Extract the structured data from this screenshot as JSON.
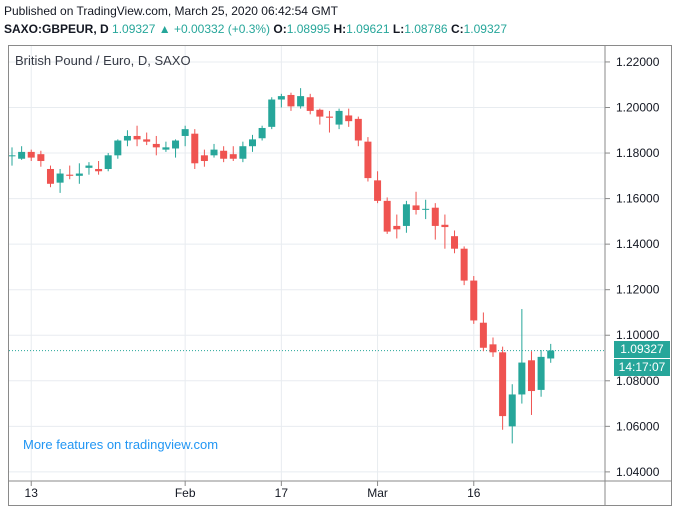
{
  "header": {
    "published": "Published on TradingView.com, March 25, 2020 06:42:54 GMT",
    "symbol": "SAXO:GBPEUR, D",
    "last": "1.09327",
    "change": "▲ +0.00332 (+0.3%)",
    "o_label": "O:",
    "o_value": "1.08995",
    "h_label": "H:",
    "h_value": "1.09621",
    "l_label": "L:",
    "l_value": "1.08786",
    "c_label": "C:",
    "c_value": "1.09327"
  },
  "promo": "More features on tradingview.com",
  "price_tag": {
    "price": "1.09327",
    "countdown": "14:17:07"
  },
  "colors": {
    "up": "#26a69a",
    "down": "#ef5350",
    "grid": "#e8ecf0",
    "last_line": "#26a69a"
  },
  "chart_data": {
    "type": "candlestick",
    "title": "British Pound / Euro, D, SAXO",
    "y_ticks": [
      "1.22000",
      "1.20000",
      "1.18000",
      "1.16000",
      "1.14000",
      "1.12000",
      "1.10000",
      "1.08000",
      "1.06000",
      "1.04000"
    ],
    "x_ticks": [
      "13",
      "Feb",
      "17",
      "Mar",
      "16"
    ],
    "ylim": [
      1.036,
      1.227
    ],
    "last_price": 1.09327,
    "grid": true,
    "candles": [
      {
        "o": 1.179,
        "h": 1.1825,
        "l": 1.1745,
        "c": 1.179
      },
      {
        "o": 1.1775,
        "h": 1.183,
        "l": 1.177,
        "c": 1.1805
      },
      {
        "o": 1.1805,
        "h": 1.1815,
        "l": 1.1765,
        "c": 1.178
      },
      {
        "o": 1.1795,
        "h": 1.181,
        "l": 1.174,
        "c": 1.1765
      },
      {
        "o": 1.173,
        "h": 1.1745,
        "l": 1.165,
        "c": 1.1665
      },
      {
        "o": 1.167,
        "h": 1.173,
        "l": 1.1625,
        "c": 1.171
      },
      {
        "o": 1.1705,
        "h": 1.1745,
        "l": 1.1685,
        "c": 1.17
      },
      {
        "o": 1.17,
        "h": 1.1755,
        "l": 1.1665,
        "c": 1.171
      },
      {
        "o": 1.1735,
        "h": 1.176,
        "l": 1.1705,
        "c": 1.1745
      },
      {
        "o": 1.173,
        "h": 1.1765,
        "l": 1.1705,
        "c": 1.172
      },
      {
        "o": 1.173,
        "h": 1.18,
        "l": 1.172,
        "c": 1.179
      },
      {
        "o": 1.179,
        "h": 1.186,
        "l": 1.1775,
        "c": 1.1855
      },
      {
        "o": 1.1855,
        "h": 1.19,
        "l": 1.183,
        "c": 1.1875
      },
      {
        "o": 1.1875,
        "h": 1.192,
        "l": 1.183,
        "c": 1.186
      },
      {
        "o": 1.186,
        "h": 1.189,
        "l": 1.1835,
        "c": 1.185
      },
      {
        "o": 1.184,
        "h": 1.1875,
        "l": 1.179,
        "c": 1.1825
      },
      {
        "o": 1.1815,
        "h": 1.185,
        "l": 1.1805,
        "c": 1.1825
      },
      {
        "o": 1.182,
        "h": 1.186,
        "l": 1.178,
        "c": 1.1855
      },
      {
        "o": 1.1875,
        "h": 1.192,
        "l": 1.183,
        "c": 1.1905
      },
      {
        "o": 1.1885,
        "h": 1.1905,
        "l": 1.173,
        "c": 1.1755
      },
      {
        "o": 1.179,
        "h": 1.1815,
        "l": 1.174,
        "c": 1.1765
      },
      {
        "o": 1.179,
        "h": 1.184,
        "l": 1.178,
        "c": 1.1815
      },
      {
        "o": 1.181,
        "h": 1.183,
        "l": 1.176,
        "c": 1.1775
      },
      {
        "o": 1.1795,
        "h": 1.183,
        "l": 1.1765,
        "c": 1.1775
      },
      {
        "o": 1.1775,
        "h": 1.185,
        "l": 1.176,
        "c": 1.183
      },
      {
        "o": 1.183,
        "h": 1.188,
        "l": 1.1805,
        "c": 1.186
      },
      {
        "o": 1.1865,
        "h": 1.192,
        "l": 1.1855,
        "c": 1.191
      },
      {
        "o": 1.1915,
        "h": 1.2045,
        "l": 1.1905,
        "c": 1.2035
      },
      {
        "o": 1.2035,
        "h": 1.206,
        "l": 1.2,
        "c": 1.205
      },
      {
        "o": 1.2055,
        "h": 1.2065,
        "l": 1.1985,
        "c": 1.2005
      },
      {
        "o": 1.2005,
        "h": 1.2085,
        "l": 1.1995,
        "c": 1.205
      },
      {
        "o": 1.2045,
        "h": 1.206,
        "l": 1.197,
        "c": 1.1985
      },
      {
        "o": 1.199,
        "h": 1.1995,
        "l": 1.1925,
        "c": 1.196
      },
      {
        "o": 1.196,
        "h": 1.1985,
        "l": 1.189,
        "c": 1.1955
      },
      {
        "o": 1.1925,
        "h": 1.1995,
        "l": 1.1905,
        "c": 1.1985
      },
      {
        "o": 1.1965,
        "h": 1.1995,
        "l": 1.1915,
        "c": 1.194
      },
      {
        "o": 1.195,
        "h": 1.196,
        "l": 1.183,
        "c": 1.1855
      },
      {
        "o": 1.185,
        "h": 1.187,
        "l": 1.1675,
        "c": 1.169
      },
      {
        "o": 1.168,
        "h": 1.172,
        "l": 1.158,
        "c": 1.159
      },
      {
        "o": 1.159,
        "h": 1.1605,
        "l": 1.1445,
        "c": 1.1455
      },
      {
        "o": 1.148,
        "h": 1.153,
        "l": 1.1425,
        "c": 1.1465
      },
      {
        "o": 1.148,
        "h": 1.159,
        "l": 1.145,
        "c": 1.1575
      },
      {
        "o": 1.157,
        "h": 1.163,
        "l": 1.153,
        "c": 1.155
      },
      {
        "o": 1.1555,
        "h": 1.1595,
        "l": 1.151,
        "c": 1.1555
      },
      {
        "o": 1.156,
        "h": 1.158,
        "l": 1.142,
        "c": 1.148
      },
      {
        "o": 1.1485,
        "h": 1.153,
        "l": 1.138,
        "c": 1.1475
      },
      {
        "o": 1.1435,
        "h": 1.146,
        "l": 1.136,
        "c": 1.138
      },
      {
        "o": 1.138,
        "h": 1.139,
        "l": 1.122,
        "c": 1.124
      },
      {
        "o": 1.124,
        "h": 1.126,
        "l": 1.105,
        "c": 1.1065
      },
      {
        "o": 1.1055,
        "h": 1.11,
        "l": 1.093,
        "c": 1.0945
      },
      {
        "o": 1.096,
        "h": 1.099,
        "l": 1.0905,
        "c": 1.0925
      },
      {
        "o": 1.0925,
        "h": 1.095,
        "l": 1.0585,
        "c": 1.0645
      },
      {
        "o": 1.06,
        "h": 1.0785,
        "l": 1.0525,
        "c": 1.074
      },
      {
        "o": 1.074,
        "h": 1.1115,
        "l": 1.07,
        "c": 1.088
      },
      {
        "o": 1.089,
        "h": 1.093,
        "l": 1.065,
        "c": 1.0755
      },
      {
        "o": 1.076,
        "h": 1.0935,
        "l": 1.073,
        "c": 1.0905
      },
      {
        "o": 1.0898,
        "h": 1.0962,
        "l": 1.0879,
        "c": 1.0933
      }
    ]
  }
}
